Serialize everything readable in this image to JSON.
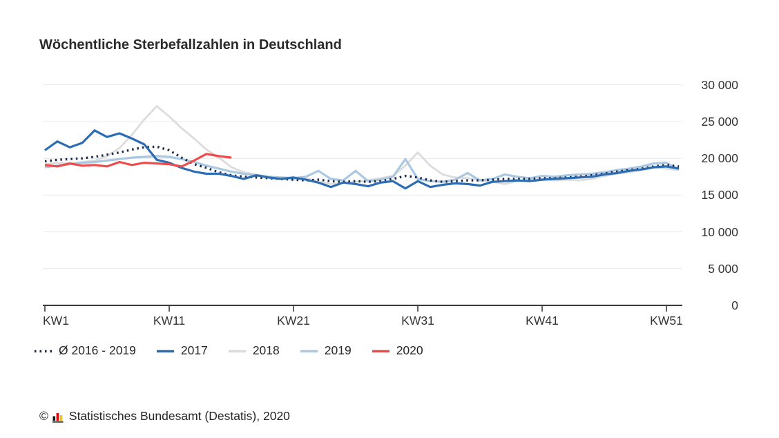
{
  "chart_data": {
    "type": "line",
    "title": "Wöchentliche Sterbefallzahlen in Deutschland",
    "xlabel": "",
    "ylabel": "",
    "x_unit": "Kalenderwoche",
    "weeks": [
      1,
      2,
      3,
      4,
      5,
      6,
      7,
      8,
      9,
      10,
      11,
      12,
      13,
      14,
      15,
      16,
      17,
      18,
      19,
      20,
      21,
      22,
      23,
      24,
      25,
      26,
      27,
      28,
      29,
      30,
      31,
      32,
      33,
      34,
      35,
      36,
      37,
      38,
      39,
      40,
      41,
      42,
      43,
      44,
      45,
      46,
      47,
      48,
      49,
      50,
      51,
      52
    ],
    "xticks": [
      {
        "week": 1,
        "label": "KW1"
      },
      {
        "week": 11,
        "label": "KW11"
      },
      {
        "week": 21,
        "label": "KW21"
      },
      {
        "week": 31,
        "label": "KW31"
      },
      {
        "week": 41,
        "label": "KW41"
      },
      {
        "week": 51,
        "label": "KW51"
      }
    ],
    "yticks": [
      {
        "value": 30000,
        "label": "30 000"
      },
      {
        "value": 25000,
        "label": "25 000"
      },
      {
        "value": 20000,
        "label": "20 000"
      },
      {
        "value": 15000,
        "label": "15 000"
      },
      {
        "value": 10000,
        "label": "10 000"
      },
      {
        "value": 5000,
        "label": "5 000"
      },
      {
        "value": 0,
        "label": "0"
      }
    ],
    "ylim": [
      0,
      30000
    ],
    "grid": "horizontal",
    "legend_position": "bottom",
    "series": [
      {
        "name": "Ø 2016 - 2019",
        "color": "#1b2a4a",
        "line_style": "dotted",
        "values": [
          19600,
          19800,
          19900,
          20000,
          20200,
          20500,
          20800,
          21200,
          21500,
          21600,
          21100,
          20100,
          19200,
          18700,
          18100,
          17700,
          17500,
          17400,
          17300,
          17200,
          17100,
          17000,
          17100,
          16900,
          16800,
          16900,
          16800,
          16900,
          17200,
          17600,
          17400,
          17000,
          16800,
          16900,
          17000,
          17000,
          17100,
          17200,
          17200,
          17200,
          17300,
          17300,
          17400,
          17500,
          17700,
          17900,
          18200,
          18400,
          18600,
          18900,
          19100,
          18900
        ]
      },
      {
        "name": "2017",
        "color": "#2b6cb3",
        "line_style": "solid",
        "values": [
          21100,
          22300,
          21500,
          22100,
          23800,
          22900,
          23400,
          22700,
          21900,
          19800,
          19400,
          18700,
          18200,
          17900,
          17900,
          17600,
          17200,
          17700,
          17400,
          17200,
          17400,
          17100,
          16700,
          16100,
          16700,
          16500,
          16200,
          16700,
          16900,
          15900,
          16900,
          16100,
          16400,
          16600,
          16500,
          16300,
          16800,
          16900,
          17000,
          16900,
          17100,
          17200,
          17300,
          17400,
          17500,
          17800,
          18000,
          18300,
          18500,
          18800,
          18900,
          18600
        ]
      },
      {
        "name": "2018",
        "color": "#dcdcdc",
        "line_style": "solid",
        "values": [
          19200,
          19400,
          19300,
          19500,
          19700,
          20300,
          21400,
          23200,
          25300,
          27100,
          25700,
          24100,
          22700,
          21200,
          20100,
          18800,
          18100,
          17800,
          17500,
          17300,
          17100,
          17300,
          16800,
          16500,
          16700,
          16800,
          17000,
          17300,
          17600,
          19000,
          20800,
          19000,
          17800,
          17400,
          17300,
          17100,
          16800,
          16500,
          16900,
          17100,
          17200,
          17000,
          17100,
          17000,
          17200,
          17600,
          17900,
          18100,
          18400,
          18700,
          18600,
          18400
        ]
      },
      {
        "name": "2019",
        "color": "#abc8e2",
        "line_style": "solid",
        "values": [
          18800,
          19000,
          19200,
          19400,
          19500,
          19700,
          19900,
          20100,
          20200,
          20300,
          20200,
          19900,
          19500,
          19000,
          18600,
          18200,
          17900,
          17700,
          17500,
          17400,
          17300,
          17500,
          18300,
          17200,
          17000,
          18300,
          16900,
          17100,
          17500,
          19900,
          17200,
          16900,
          16800,
          17100,
          18000,
          17000,
          17200,
          17800,
          17500,
          17300,
          17600,
          17500,
          17700,
          17800,
          17900,
          18100,
          18400,
          18600,
          18900,
          19300,
          19400,
          18500
        ]
      },
      {
        "name": "2020",
        "color": "#ee4b4b",
        "line_style": "solid",
        "values": [
          19100,
          18900,
          19300,
          19000,
          19100,
          18900,
          19500,
          19100,
          19400,
          19300,
          19200,
          18900,
          19700,
          20600,
          20300,
          20100
        ]
      }
    ]
  },
  "footer": {
    "copyright": "©",
    "logo": "destatis-bar-chart-logo",
    "source": "Statistisches Bundesamt (Destatis), 2020"
  },
  "colors": {
    "grid": "#e9e9e9",
    "axis": "#3a3a3a",
    "text": "#262626",
    "logo_black": "#1a1a1a",
    "logo_red": "#e30613",
    "logo_gold": "#fdc300"
  }
}
